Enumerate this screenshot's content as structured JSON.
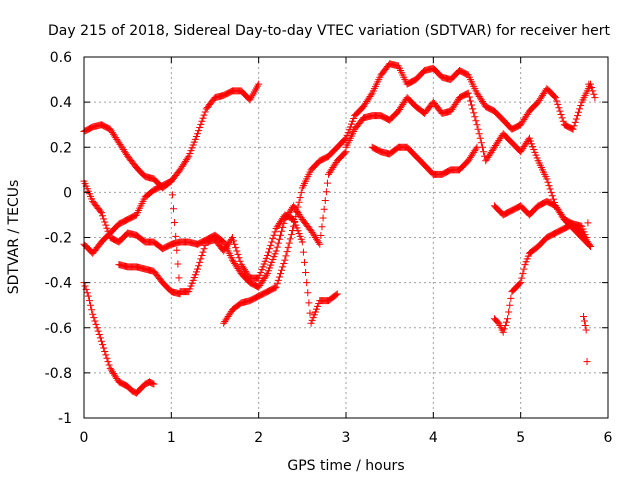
{
  "chart_data": {
    "type": "scatter",
    "title": "Day 215 of 2018, Sidereal Day-to-day VTEC variation (SDTVAR) for receiver hert",
    "xlabel": "GPS time / hours",
    "ylabel": "SDTVAR / TECUs",
    "xlim": [
      0,
      6
    ],
    "ylim": [
      -1,
      0.6
    ],
    "xticks": [
      "0",
      "1",
      "2",
      "3",
      "4",
      "5",
      "6"
    ],
    "yticks": [
      "-1",
      "-0.8",
      "-0.6",
      "-0.4",
      "-0.2",
      "0",
      "0.2",
      "0.4",
      "0.6"
    ],
    "grid": true,
    "marker": "+",
    "color": "#ff0000",
    "series": [
      {
        "x": [
          0.0,
          0.1,
          0.2,
          0.3,
          0.4,
          0.5,
          0.6,
          0.7,
          0.8,
          0.9,
          1.0,
          1.1,
          1.2,
          1.3,
          1.4,
          1.5,
          1.6,
          1.7,
          1.8,
          1.9,
          2.0
        ],
        "y": [
          0.27,
          0.29,
          0.3,
          0.28,
          0.22,
          0.16,
          0.11,
          0.07,
          0.06,
          0.02,
          0.05,
          0.1,
          0.16,
          0.26,
          0.37,
          0.42,
          0.43,
          0.45,
          0.45,
          0.41,
          0.48
        ]
      },
      {
        "x": [
          0.0,
          0.1,
          0.2,
          0.3,
          0.4,
          0.5,
          0.6,
          0.7,
          0.8,
          0.9,
          1.0,
          1.1,
          1.2,
          1.3,
          1.4,
          1.5,
          1.6,
          1.7,
          1.8,
          1.9,
          2.0,
          2.1,
          2.2,
          2.3,
          2.4,
          2.5,
          2.6,
          2.7,
          2.8,
          2.9,
          3.0
        ],
        "y": [
          0.05,
          -0.04,
          -0.09,
          -0.2,
          -0.22,
          -0.18,
          -0.19,
          -0.22,
          -0.22,
          -0.25,
          -0.23,
          -0.22,
          -0.22,
          -0.23,
          -0.21,
          -0.19,
          -0.22,
          -0.3,
          -0.36,
          -0.4,
          -0.42,
          -0.36,
          -0.26,
          -0.12,
          -0.06,
          -0.12,
          -0.17,
          -0.23,
          0.08,
          0.14,
          0.18
        ]
      },
      {
        "x": [
          0.0,
          0.1,
          0.2,
          0.3,
          0.4,
          0.5,
          0.6,
          0.7,
          0.8,
          0.9,
          1.0,
          1.1,
          1.2,
          1.3,
          1.4,
          1.5,
          1.6,
          1.7,
          1.8,
          1.9,
          2.0,
          2.1,
          2.2,
          2.3,
          2.4,
          2.5,
          2.6,
          2.7,
          2.8,
          2.9
        ],
        "y": [
          -0.23,
          -0.27,
          -0.22,
          -0.18,
          -0.14,
          -0.12,
          -0.1,
          -0.02,
          0.01,
          0.03,
          0.05,
          -0.44,
          -0.44,
          -0.34,
          -0.22,
          -0.21,
          -0.26,
          -0.2,
          -0.32,
          -0.38,
          -0.38,
          -0.28,
          -0.16,
          -0.1,
          -0.12,
          -0.22,
          -0.58,
          -0.48,
          -0.48,
          -0.45
        ]
      },
      {
        "x": [
          0.0,
          0.05,
          0.1,
          0.15,
          0.2,
          0.25,
          0.3,
          0.35,
          0.4,
          0.45,
          0.5,
          0.55,
          0.6,
          0.65,
          0.7,
          0.75,
          0.8
        ],
        "y": [
          -0.4,
          -0.46,
          -0.54,
          -0.6,
          -0.66,
          -0.72,
          -0.78,
          -0.81,
          -0.84,
          -0.85,
          -0.86,
          -0.88,
          -0.89,
          -0.87,
          -0.85,
          -0.84,
          -0.85
        ]
      },
      {
        "x": [
          0.4,
          0.5,
          0.6,
          0.7,
          0.8,
          0.9,
          1.0,
          1.1
        ],
        "y": [
          -0.32,
          -0.33,
          -0.33,
          -0.34,
          -0.35,
          -0.4,
          -0.44,
          -0.45
        ]
      },
      {
        "x": [
          1.6,
          1.7,
          1.8,
          1.9,
          2.0,
          2.1,
          2.2,
          2.3,
          2.4,
          2.5,
          2.6,
          2.7,
          2.8,
          2.9,
          3.0,
          3.1,
          3.2,
          3.3,
          3.4,
          3.5,
          3.6,
          3.7,
          3.8,
          3.9,
          4.0,
          4.1,
          4.2,
          4.3,
          4.4,
          4.5,
          4.6,
          4.7,
          4.8,
          4.9,
          5.0,
          5.1,
          5.2,
          5.3,
          5.4,
          5.5,
          5.6,
          5.7,
          5.8,
          5.85
        ],
        "y": [
          -0.58,
          -0.52,
          -0.49,
          -0.48,
          -0.46,
          -0.44,
          -0.42,
          -0.3,
          -0.15,
          0.02,
          0.1,
          0.14,
          0.16,
          0.2,
          0.24,
          0.34,
          0.38,
          0.44,
          0.52,
          0.57,
          0.56,
          0.48,
          0.5,
          0.54,
          0.55,
          0.51,
          0.5,
          0.54,
          0.52,
          0.44,
          0.38,
          0.36,
          0.32,
          0.28,
          0.3,
          0.36,
          0.4,
          0.46,
          0.42,
          0.3,
          0.28,
          0.4,
          0.48,
          0.42
        ]
      },
      {
        "x": [
          3.0,
          3.1,
          3.2,
          3.3,
          3.4,
          3.5,
          3.6,
          3.7,
          3.8,
          3.9,
          4.0,
          4.1,
          4.2,
          4.3,
          4.4,
          4.5,
          4.6,
          4.7,
          4.8,
          4.9,
          5.0,
          5.1,
          5.2,
          5.3,
          5.4,
          5.5,
          5.6,
          5.7,
          5.8
        ],
        "y": [
          0.2,
          0.28,
          0.33,
          0.34,
          0.34,
          0.32,
          0.36,
          0.42,
          0.38,
          0.35,
          0.4,
          0.35,
          0.36,
          0.42,
          0.44,
          0.3,
          0.14,
          0.2,
          0.26,
          0.22,
          0.18,
          0.24,
          0.14,
          0.06,
          -0.06,
          -0.12,
          -0.16,
          -0.2,
          -0.24
        ]
      },
      {
        "x": [
          3.3,
          3.4,
          3.5,
          3.6,
          3.7,
          3.8,
          3.9,
          4.0,
          4.1,
          4.2,
          4.3,
          4.4,
          4.5
        ],
        "y": [
          0.2,
          0.18,
          0.17,
          0.2,
          0.2,
          0.16,
          0.12,
          0.08,
          0.08,
          0.1,
          0.1,
          0.14,
          0.2
        ]
      },
      {
        "x": [
          4.7,
          4.75,
          4.8,
          4.85,
          4.9,
          4.95,
          5.0,
          5.05,
          5.1,
          5.2,
          5.3,
          5.4,
          5.5,
          5.6,
          5.7,
          5.75
        ],
        "y": [
          -0.56,
          -0.58,
          -0.62,
          -0.56,
          -0.44,
          -0.42,
          -0.4,
          -0.32,
          -0.27,
          -0.24,
          -0.2,
          -0.18,
          -0.16,
          -0.14,
          -0.15,
          -0.2
        ]
      },
      {
        "x": [
          4.7,
          4.8,
          4.9,
          5.0,
          5.1,
          5.2,
          5.3,
          5.4,
          5.5,
          5.6,
          5.7,
          5.8
        ],
        "y": [
          -0.06,
          -0.1,
          -0.08,
          -0.06,
          -0.1,
          -0.06,
          -0.04,
          -0.06,
          -0.12,
          -0.14,
          -0.18,
          -0.24
        ]
      },
      {
        "x": [
          5.72,
          5.75,
          5.76,
          5.78
        ],
        "y": [
          -0.55,
          -0.61,
          -0.75,
          0.48
        ]
      }
    ]
  }
}
